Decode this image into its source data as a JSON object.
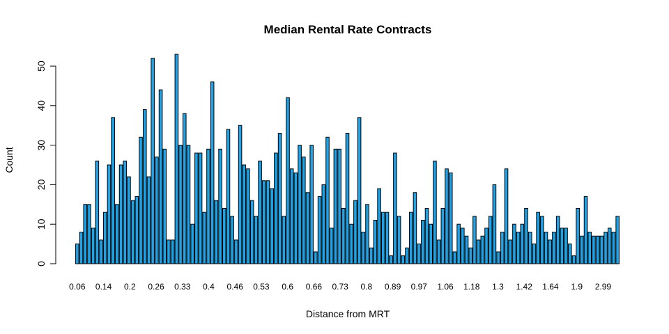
{
  "chart_data": {
    "type": "bar",
    "title": "Median Rental Rate Contracts",
    "xlabel": "Distance from MRT",
    "ylabel": "Count",
    "ylim": [
      0,
      53
    ],
    "yticks": [
      0,
      10,
      20,
      30,
      40,
      50
    ],
    "bar_color": "#1FA2E6",
    "x_tick_labels": [
      "0.06",
      "0.14",
      "0.2",
      "0.26",
      "0.33",
      "0.4",
      "0.46",
      "0.53",
      "0.6",
      "0.66",
      "0.73",
      "0.8",
      "0.89",
      "0.97",
      "1.06",
      "1.18",
      "1.3",
      "1.42",
      "1.64",
      "1.9",
      "2.99"
    ],
    "values": [
      5,
      8,
      15,
      15,
      9,
      26,
      6,
      13,
      25,
      37,
      15,
      25,
      26,
      22,
      16,
      17,
      32,
      39,
      22,
      52,
      27,
      44,
      29,
      6,
      6,
      53,
      30,
      38,
      30,
      10,
      28,
      28,
      13,
      29,
      46,
      16,
      29,
      14,
      34,
      12,
      6,
      35,
      25,
      24,
      16,
      12,
      26,
      21,
      21,
      19,
      28,
      33,
      12,
      42,
      24,
      23,
      30,
      27,
      18,
      30,
      3,
      17,
      20,
      32,
      9,
      29,
      29,
      14,
      33,
      10,
      16,
      37,
      8,
      15,
      4,
      11,
      19,
      13,
      13,
      2,
      28,
      12,
      2,
      4,
      13,
      18,
      5,
      11,
      14,
      10,
      26,
      6,
      14,
      24,
      23,
      3,
      10,
      9,
      7,
      4,
      12,
      6,
      7,
      9,
      12,
      20,
      3,
      8,
      24,
      6,
      10,
      8,
      10,
      14,
      8,
      5,
      13,
      12,
      8,
      6,
      8,
      12,
      9,
      9,
      5,
      2,
      14,
      7,
      17,
      8,
      7,
      7,
      7,
      8,
      9,
      8,
      12
    ]
  }
}
